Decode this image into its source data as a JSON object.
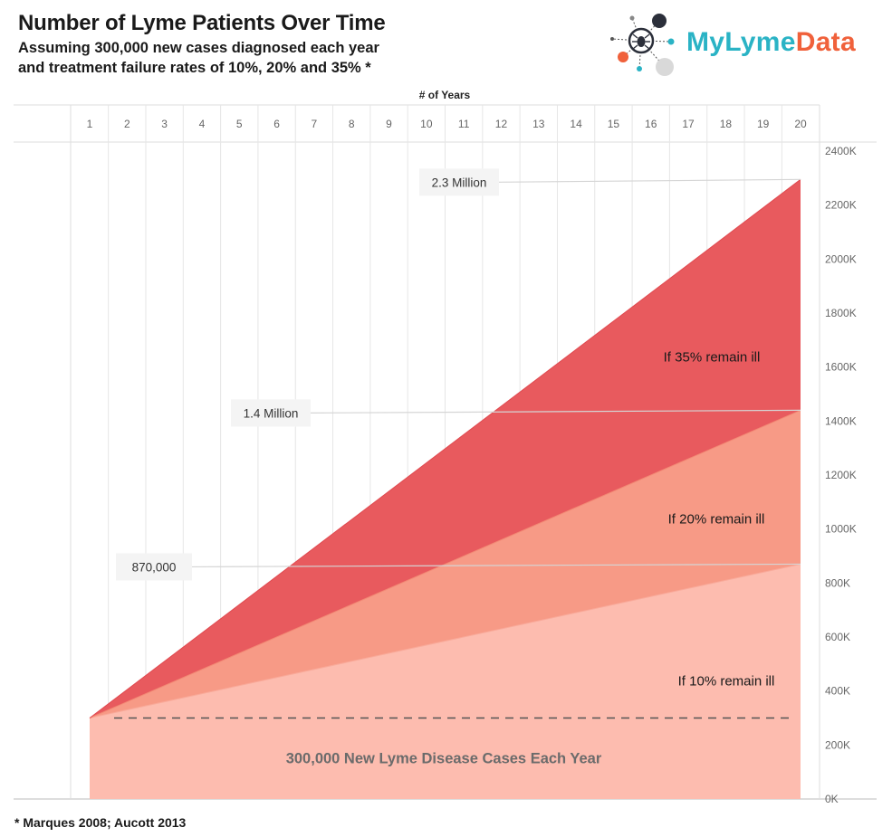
{
  "header": {
    "title": "Number of Lyme Patients Over Time",
    "subtitle_line1": "Assuming 300,000 new cases diagnosed each year",
    "subtitle_line2": "and treatment failure rates of 10%, 20% and 35% *"
  },
  "logo": {
    "text_part1": "MyLyme",
    "text_part2": "Data"
  },
  "footnote": "* Marques 2008; Aucott 2013",
  "colors": {
    "accent_teal": "#2ab3c5",
    "accent_orange": "#f0613b",
    "area_35": "#e85a5e",
    "area_20": "#f79a86",
    "area_10": "#fdbcaf"
  },
  "chart_data": {
    "type": "area",
    "title": "Number of Lyme Patients Over Time",
    "xlabel": "# of Years",
    "ylabel": "",
    "x": [
      1,
      2,
      3,
      4,
      5,
      6,
      7,
      8,
      9,
      10,
      11,
      12,
      13,
      14,
      15,
      16,
      17,
      18,
      19,
      20
    ],
    "y_ticks": [
      "0K",
      "200K",
      "400K",
      "600K",
      "800K",
      "1000K",
      "1200K",
      "1400K",
      "1600K",
      "1800K",
      "2000K",
      "2200K",
      "2400K"
    ],
    "ylim": [
      0,
      2400000
    ],
    "grid": "vertical",
    "series": [
      {
        "name": "If 10% remain ill",
        "start": 300000,
        "end": 870000
      },
      {
        "name": "If 20% remain ill",
        "start": 300000,
        "end": 1440000
      },
      {
        "name": "If 35% remain ill",
        "start": 300000,
        "end": 2295000
      }
    ],
    "baseline": {
      "value": 300000,
      "label": "300,000 New Lyme Disease Cases Each Year"
    },
    "annotations": [
      {
        "label": "2.3 Million",
        "value": 2295000
      },
      {
        "label": "1.4 Million",
        "value": 1440000
      },
      {
        "label": "870,000",
        "value": 870000
      }
    ]
  }
}
